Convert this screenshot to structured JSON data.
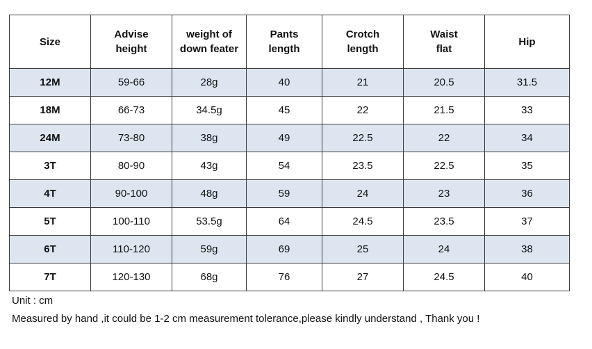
{
  "table": {
    "headers": [
      [
        "Size"
      ],
      [
        "Advise",
        "height"
      ],
      [
        "weight of",
        "down feater"
      ],
      [
        "Pants",
        "length"
      ],
      [
        "Crotch",
        "length"
      ],
      [
        "Waist",
        "flat"
      ],
      [
        "Hip"
      ]
    ],
    "rows": [
      [
        "12M",
        "59-66",
        "28g",
        "40",
        "21",
        "20.5",
        "31.5"
      ],
      [
        "18M",
        "66-73",
        "34.5g",
        "45",
        "22",
        "21.5",
        "33"
      ],
      [
        "24M",
        "73-80",
        "38g",
        "49",
        "22.5",
        "22",
        "34"
      ],
      [
        "3T",
        "80-90",
        "43g",
        "54",
        "23.5",
        "22.5",
        "35"
      ],
      [
        "4T",
        "90-100",
        "48g",
        "59",
        "24",
        "23",
        "36"
      ],
      [
        "5T",
        "100-110",
        "53.5g",
        "64",
        "24.5",
        "23.5",
        "37"
      ],
      [
        "6T",
        "110-120",
        "59g",
        "69",
        "25",
        "24",
        "38"
      ],
      [
        "7T",
        "120-130",
        "68g",
        "76",
        "27",
        "24.5",
        "40"
      ]
    ]
  },
  "notes": {
    "unit": "Unit : cm",
    "measurement": "Measured by hand ,it could be 1-2 cm measurement tolerance,please kindly understand , Thank you !"
  },
  "colors": {
    "stripe": "#dde6f0",
    "border": "#3a3a3a",
    "text": "#111111"
  }
}
